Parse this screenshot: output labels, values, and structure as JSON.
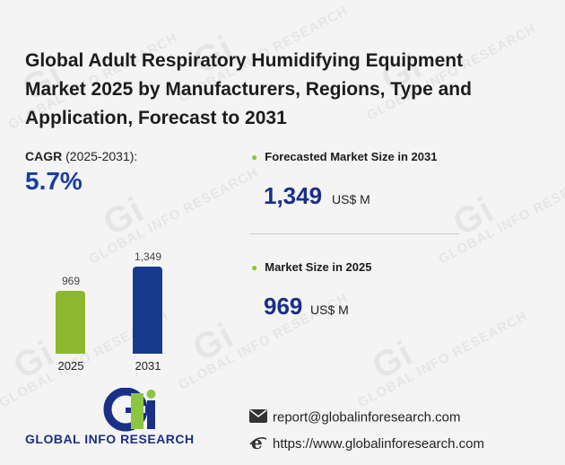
{
  "title": "Global Adult Respiratory Humidifying Equipment Market 2025 by Manufacturers, Regions, Type and Application, Forecast to 2031",
  "cagr": {
    "label": "CAGR",
    "period": "(2025-2031):",
    "value": "5.7%"
  },
  "chart_data": {
    "type": "bar",
    "categories": [
      "2025",
      "2031"
    ],
    "values": [
      969,
      1349
    ],
    "value_labels": [
      "969",
      "1,349"
    ],
    "colors": [
      "#8cb82e",
      "#173a8f"
    ]
  },
  "stats": [
    {
      "label": "Forecasted Market Size in 2031",
      "value": "1,349",
      "unit": "US$ M"
    },
    {
      "label": "Market Size in 2025",
      "value": "969",
      "unit": "US$ M"
    }
  ],
  "logo": {
    "text": "GLOBAL INFO RESEARCH"
  },
  "watermark": "GLOBAL INFO RESEARCH",
  "contact": {
    "email": "report@globalinforesearch.com",
    "website": "https://www.globalinforesearch.com"
  },
  "colors": {
    "accent_green": "#8cc63f",
    "accent_blue": "#1a3ea0"
  }
}
